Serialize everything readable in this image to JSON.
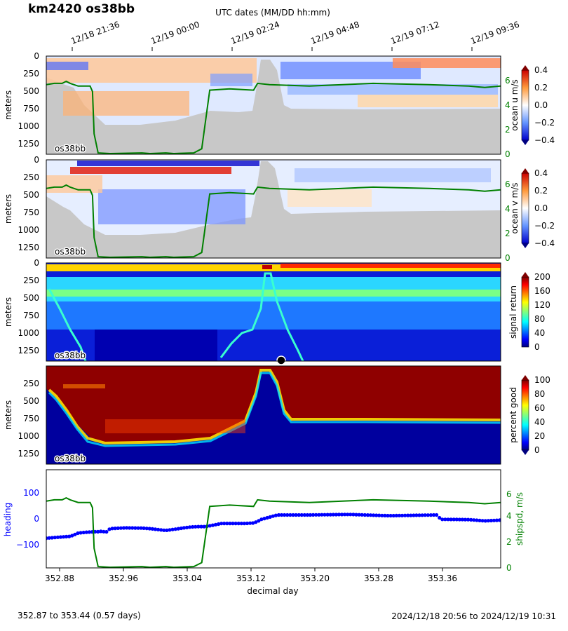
{
  "figure": {
    "title": "km2420 os38bb",
    "top_axis_title": "UTC dates (MM/DD hh:mm)",
    "top_ticks": [
      "12/18 21:36",
      "12/19 00:00",
      "12/19 02:24",
      "12/19 04:48",
      "12/19 07:12",
      "12/19 09:36"
    ],
    "footer_left": "352.87 to 353.44 (0.57 days)",
    "footer_right": "2024/12/18 20:56 to 2024/12/19 10:31",
    "colors": {
      "background": "#ffffff",
      "bathymetry": "#c8c8c8",
      "shipspd": "#008000",
      "heading": "#0000ff"
    }
  },
  "chart_data": [
    {
      "type": "heatmap",
      "panel": "u",
      "ylabel": "meters",
      "cbar_label": "ocean u m/s",
      "cbar_ticks": [
        "0.4",
        "0.2",
        "0.0",
        "−0.2",
        "−0.4"
      ],
      "clim": [
        -0.4,
        0.4
      ],
      "colormap": "bwr",
      "yticks": [
        "0",
        "250",
        "500",
        "750",
        "1000",
        "1250"
      ],
      "ylim": [
        1400,
        0
      ],
      "right_ticks": [
        "0",
        "2",
        "4",
        "6"
      ],
      "tag": "os38bb"
    },
    {
      "type": "heatmap",
      "panel": "v",
      "ylabel": "meters",
      "cbar_label": "ocean v m/s",
      "cbar_ticks": [
        "0.4",
        "0.2",
        "0.0",
        "−0.2",
        "−0.4"
      ],
      "clim": [
        -0.4,
        0.4
      ],
      "colormap": "bwr",
      "yticks": [
        "0",
        "250",
        "500",
        "750",
        "1000",
        "1250"
      ],
      "ylim": [
        1400,
        0
      ],
      "right_ticks": [
        "0",
        "2",
        "4",
        "6"
      ],
      "tag": "os38bb"
    },
    {
      "type": "heatmap",
      "panel": "amp",
      "ylabel": "meters",
      "cbar_label": "signal return",
      "cbar_ticks": [
        "200",
        "160",
        "120",
        "80",
        "40",
        "0"
      ],
      "clim": [
        0,
        200
      ],
      "colormap": "jet",
      "yticks": [
        "0",
        "250",
        "500",
        "750",
        "1000",
        "1250"
      ],
      "ylim": [
        1400,
        0
      ],
      "tag": "os38bb"
    },
    {
      "type": "heatmap",
      "panel": "pg",
      "ylabel": "meters",
      "cbar_label": "percent good",
      "cbar_ticks": [
        "100",
        "80",
        "60",
        "40",
        "20",
        "0"
      ],
      "clim": [
        0,
        100
      ],
      "colormap": "jet",
      "yticks": [
        "250",
        "500",
        "750",
        "1000",
        "1250"
      ],
      "ylim": [
        1400,
        0
      ],
      "tag": "os38bb"
    },
    {
      "type": "line",
      "panel": "nav",
      "xlabel": "decimal day",
      "xticks": [
        "352.88",
        "352.96",
        "353.04",
        "353.12",
        "353.20",
        "353.28",
        "353.36"
      ],
      "xlim": [
        352.87,
        353.44
      ],
      "ylabel_left": "heading",
      "yticks_left": [
        "100",
        "0",
        "−100"
      ],
      "ylim_left": [
        -190,
        190
      ],
      "ylabel_right": "shipspd, m/s",
      "yticks_right": [
        "0",
        "2",
        "4",
        "6"
      ],
      "ylim_right": [
        0,
        7.5
      ],
      "series": [
        {
          "name": "heading",
          "x": [
            352.87,
            352.89,
            352.9,
            352.905,
            352.91,
            352.92,
            352.93,
            352.935,
            352.94,
            352.945,
            352.95,
            352.97,
            352.99,
            353.0,
            353.02,
            353.05,
            353.06,
            353.07,
            353.09,
            353.1,
            353.12,
            353.13,
            353.135,
            353.14,
            353.16,
            353.2,
            353.25,
            353.3,
            353.36,
            353.365,
            353.4,
            353.42,
            353.44
          ],
          "y": [
            -75,
            -70,
            -68,
            -62,
            -55,
            -52,
            -50,
            -50,
            -48,
            -52,
            -38,
            -35,
            -36,
            -38,
            -45,
            -32,
            -30,
            -30,
            -18,
            -18,
            -18,
            -16,
            -10,
            -2,
            15,
            15,
            17,
            12,
            15,
            -2,
            -3,
            -8,
            -5
          ]
        },
        {
          "name": "shipspd",
          "x": [
            352.87,
            352.88,
            352.89,
            352.895,
            352.9,
            352.91,
            352.925,
            352.928,
            352.93,
            352.935,
            352.95,
            352.99,
            353.0,
            353.02,
            353.03,
            353.055,
            353.065,
            353.075,
            353.1,
            353.13,
            353.135,
            353.15,
            353.2,
            353.28,
            353.35,
            353.4,
            353.42,
            353.44
          ],
          "y": [
            5.1,
            5.2,
            5.2,
            5.35,
            5.2,
            5.0,
            5.0,
            4.6,
            1.5,
            0.1,
            0.05,
            0.1,
            0.05,
            0.1,
            0.05,
            0.1,
            0.4,
            4.7,
            4.8,
            4.7,
            5.2,
            5.1,
            5.0,
            5.2,
            5.1,
            5.0,
            4.9,
            5.0
          ]
        }
      ]
    }
  ]
}
